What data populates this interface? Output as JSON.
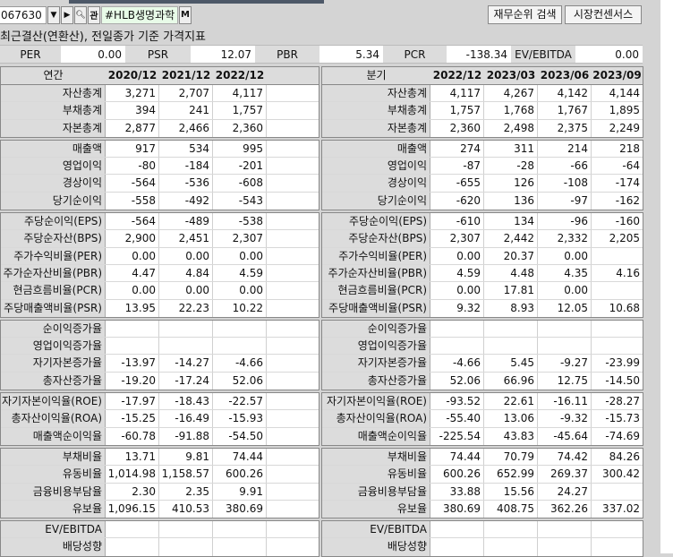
{
  "toolbar": {
    "code": "067630",
    "name": "#HLB생명과학",
    "m_label": "M",
    "kwan_label": "관",
    "buttons": [
      "재무순위 검색",
      "시장컨센서스"
    ]
  },
  "caption": "최근결산(연환산), 전일종가 기준 가격지표",
  "ratios": [
    {
      "label": "PER",
      "value": "0.00"
    },
    {
      "label": "PSR",
      "value": "12.07"
    },
    {
      "label": "PBR",
      "value": "5.34"
    },
    {
      "label": "PCR",
      "value": "-138.34"
    },
    {
      "label": "EV/EBITDA",
      "value": "0.00"
    }
  ],
  "annual": {
    "title": "연간",
    "periods": [
      "2020/12",
      "2021/12",
      "2022/12",
      ""
    ],
    "groups": [
      [
        [
          "자산총계",
          "3,271",
          "2,707",
          "4,117",
          ""
        ],
        [
          "부채총계",
          "394",
          "241",
          "1,757",
          ""
        ],
        [
          "자본총계",
          "2,877",
          "2,466",
          "2,360",
          ""
        ]
      ],
      [
        [
          "매출액",
          "917",
          "534",
          "995",
          ""
        ],
        [
          "영업이익",
          "-80",
          "-184",
          "-201",
          ""
        ],
        [
          "경상이익",
          "-564",
          "-536",
          "-608",
          ""
        ],
        [
          "당기순이익",
          "-558",
          "-492",
          "-543",
          ""
        ]
      ],
      [
        [
          "주당순이익(EPS)",
          "-564",
          "-489",
          "-538",
          ""
        ],
        [
          "주당순자산(BPS)",
          "2,900",
          "2,451",
          "2,307",
          ""
        ],
        [
          "주가수익비율(PER)",
          "0.00",
          "0.00",
          "0.00",
          ""
        ],
        [
          "주가순자산비율(PBR)",
          "4.47",
          "4.84",
          "4.59",
          ""
        ],
        [
          "현금흐름비율(PCR)",
          "0.00",
          "0.00",
          "0.00",
          ""
        ],
        [
          "주당매출액비율(PSR)",
          "13.95",
          "22.23",
          "10.22",
          ""
        ]
      ],
      [
        [
          "순이익증가율",
          "",
          "",
          "",
          ""
        ],
        [
          "영업이익증가율",
          "",
          "",
          "",
          ""
        ],
        [
          "자기자본증가율",
          "-13.97",
          "-14.27",
          "-4.66",
          ""
        ],
        [
          "총자산증가율",
          "-19.20",
          "-17.24",
          "52.06",
          ""
        ]
      ],
      [
        [
          "자기자본이익율(ROE)",
          "-17.97",
          "-18.43",
          "-22.57",
          ""
        ],
        [
          "총자산이익율(ROA)",
          "-15.25",
          "-16.49",
          "-15.93",
          ""
        ],
        [
          "매출액순이익율",
          "-60.78",
          "-91.88",
          "-54.50",
          ""
        ]
      ],
      [
        [
          "부채비율",
          "13.71",
          "9.81",
          "74.44",
          ""
        ],
        [
          "유동비율",
          "1,014.98",
          "1,158.57",
          "600.26",
          ""
        ],
        [
          "금융비용부담율",
          "2.30",
          "2.35",
          "9.91",
          ""
        ],
        [
          "유보율",
          "1,096.15",
          "410.53",
          "380.69",
          ""
        ]
      ],
      [
        [
          "EV/EBITDA",
          "",
          "",
          "",
          ""
        ],
        [
          "배당성향",
          "",
          "",
          "",
          ""
        ]
      ]
    ]
  },
  "quarterly": {
    "title": "분기",
    "periods": [
      "2022/12",
      "2023/03",
      "2023/06",
      "2023/09"
    ],
    "groups": [
      [
        [
          "자산총계",
          "4,117",
          "4,267",
          "4,142",
          "4,144"
        ],
        [
          "부채총계",
          "1,757",
          "1,768",
          "1,767",
          "1,895"
        ],
        [
          "자본총계",
          "2,360",
          "2,498",
          "2,375",
          "2,249"
        ]
      ],
      [
        [
          "매출액",
          "274",
          "311",
          "214",
          "218"
        ],
        [
          "영업이익",
          "-87",
          "-28",
          "-66",
          "-64"
        ],
        [
          "경상이익",
          "-655",
          "126",
          "-108",
          "-174"
        ],
        [
          "당기순이익",
          "-620",
          "136",
          "-97",
          "-162"
        ]
      ],
      [
        [
          "주당순이익(EPS)",
          "-610",
          "134",
          "-96",
          "-160"
        ],
        [
          "주당순자산(BPS)",
          "2,307",
          "2,442",
          "2,332",
          "2,205"
        ],
        [
          "주가수익비율(PER)",
          "0.00",
          "20.37",
          "0.00",
          ""
        ],
        [
          "주가순자산비율(PBR)",
          "4.59",
          "4.48",
          "4.35",
          "4.16"
        ],
        [
          "현금흐름비율(PCR)",
          "0.00",
          "17.81",
          "0.00",
          ""
        ],
        [
          "주당매출액비율(PSR)",
          "9.32",
          "8.93",
          "12.05",
          "10.68"
        ]
      ],
      [
        [
          "순이익증가율",
          "",
          "",
          "",
          ""
        ],
        [
          "영업이익증가율",
          "",
          "",
          "",
          ""
        ],
        [
          "자기자본증가율",
          "-4.66",
          "5.45",
          "-9.27",
          "-23.99"
        ],
        [
          "총자산증가율",
          "52.06",
          "66.96",
          "12.75",
          "-14.50"
        ]
      ],
      [
        [
          "자기자본이익율(ROE)",
          "-93.52",
          "22.61",
          "-16.11",
          "-28.27"
        ],
        [
          "총자산이익율(ROA)",
          "-55.40",
          "13.06",
          "-9.32",
          "-15.73"
        ],
        [
          "매출액순이익율",
          "-225.54",
          "43.83",
          "-45.64",
          "-74.69"
        ]
      ],
      [
        [
          "부채비율",
          "74.44",
          "70.79",
          "74.42",
          "84.26"
        ],
        [
          "유동비율",
          "600.26",
          "652.99",
          "269.37",
          "300.42"
        ],
        [
          "금융비용부담율",
          "33.88",
          "15.56",
          "24.27",
          ""
        ],
        [
          "유보율",
          "380.69",
          "408.75",
          "362.26",
          "337.02"
        ]
      ],
      [
        [
          "EV/EBITDA",
          "",
          "",
          "",
          ""
        ],
        [
          "배당성향",
          "",
          "",
          "",
          ""
        ]
      ]
    ]
  }
}
